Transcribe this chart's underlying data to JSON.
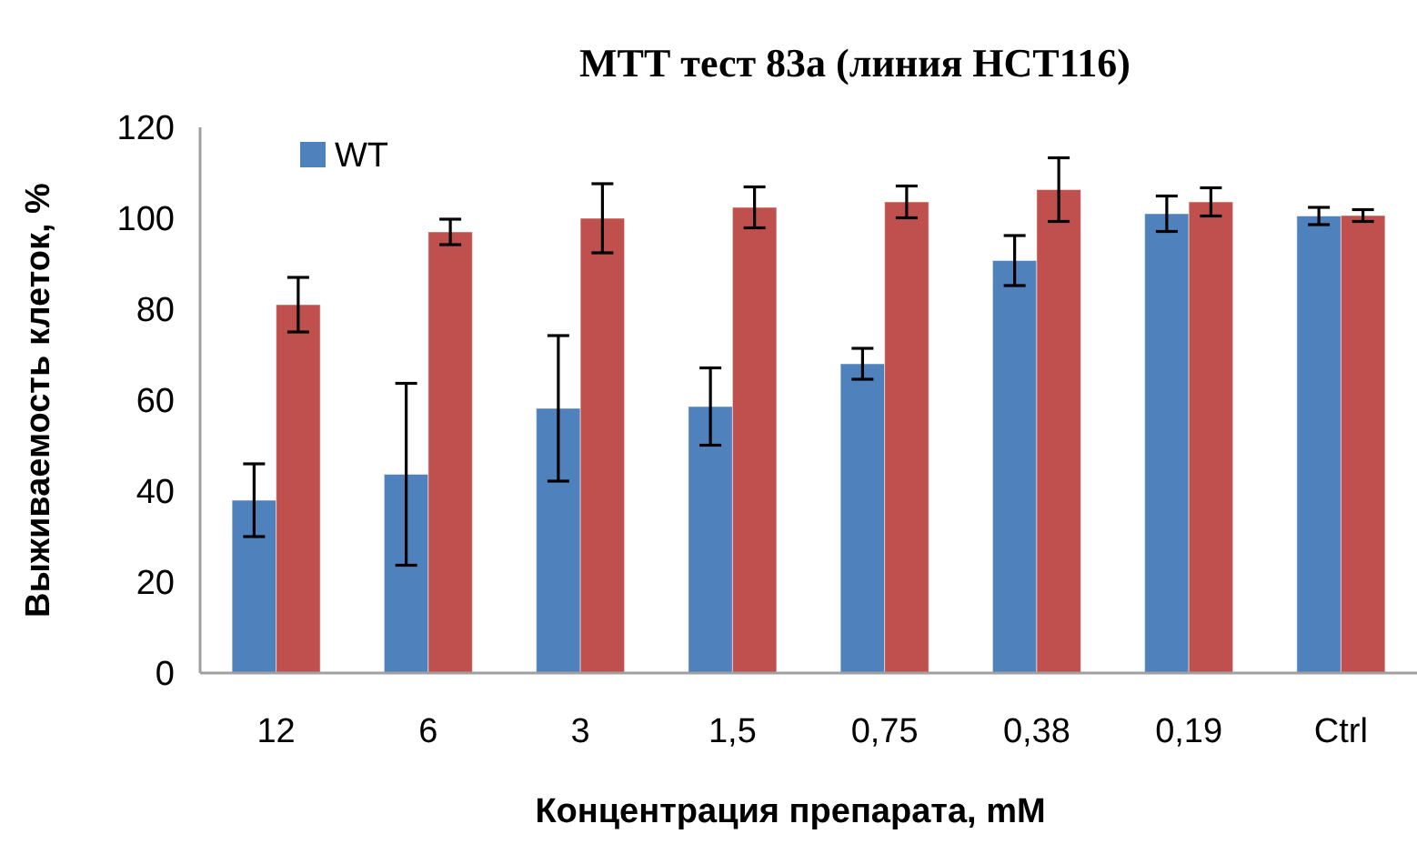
{
  "chart_data": {
    "type": "bar",
    "title": "МТТ тест 83а (линия HCT116)",
    "xlabel": "Концентрация препарата, mM",
    "ylabel": "Выживаемость клеток, %",
    "categories": [
      "12",
      "6",
      "3",
      "1,5",
      "0,75",
      "0,38",
      "0,19",
      "Ctrl"
    ],
    "series": [
      {
        "name": "WT",
        "color": "#4f81bd",
        "values": [
          38,
          43.7,
          58.2,
          58.6,
          68,
          90.7,
          101,
          100.5
        ],
        "errors": [
          8,
          20,
          16,
          8.5,
          3.4,
          5.5,
          3.9,
          1.9
        ]
      },
      {
        "color": "#c0504d",
        "values": [
          81,
          97,
          100,
          102.4,
          103.6,
          106.3,
          103.6,
          100.6
        ],
        "errors": [
          6,
          2.8,
          7.6,
          4.5,
          3.5,
          7,
          3.1,
          1.3
        ]
      }
    ],
    "ylim": [
      0,
      120
    ],
    "yticks": [
      0,
      20,
      40,
      60,
      80,
      100,
      120
    ],
    "grid": false,
    "legend": "top left"
  }
}
